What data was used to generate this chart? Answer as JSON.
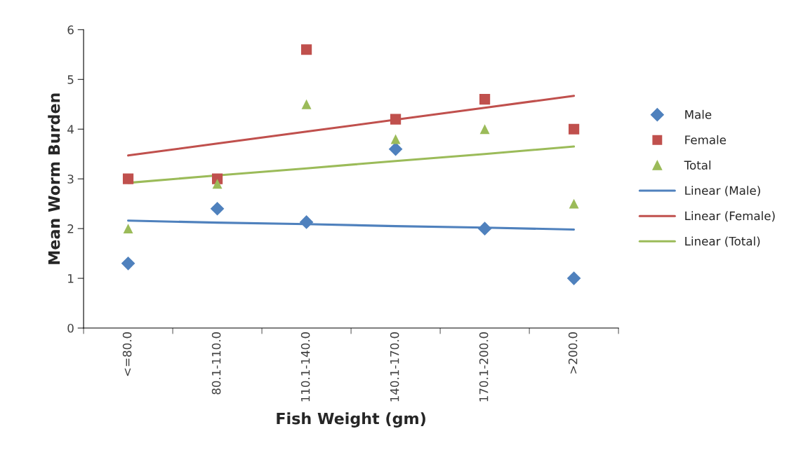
{
  "chart_data": {
    "type": "scatter",
    "xlabel": "Fish Weight (gm)",
    "ylabel": "Mean Worm Burden",
    "categories": [
      "<=80.0",
      "80.1-110.0",
      "110.1-140.0",
      "140.1-170.0",
      "170.1-200.0",
      ">200.0"
    ],
    "ylim": [
      0,
      6
    ],
    "yticks": [
      0,
      1,
      2,
      3,
      4,
      5,
      6
    ],
    "grid": false,
    "legend": "right",
    "series": [
      {
        "name": "Male",
        "marker": "diamond",
        "color": "#4f81bd",
        "values": [
          1.3,
          2.4,
          2.13,
          3.6,
          2.0,
          1.0
        ]
      },
      {
        "name": "Female",
        "marker": "square",
        "color": "#c0504d",
        "values": [
          3.0,
          3.0,
          5.6,
          4.2,
          4.6,
          4.0
        ]
      },
      {
        "name": "Total",
        "marker": "triangle",
        "color": "#9bbb59",
        "values": [
          2.0,
          2.9,
          4.5,
          3.8,
          4.0,
          2.5
        ]
      },
      {
        "name": "Linear (Male)",
        "type": "line",
        "marker": "none",
        "color": "#4f81bd",
        "values": [
          2.16,
          2.12,
          2.09,
          2.05,
          2.02,
          1.98
        ]
      },
      {
        "name": "Linear (Female)",
        "type": "line",
        "marker": "none",
        "color": "#c0504d",
        "values": [
          3.47,
          3.71,
          3.95,
          4.19,
          4.43,
          4.67
        ]
      },
      {
        "name": "Linear (Total)",
        "type": "line",
        "marker": "none",
        "color": "#9bbb59",
        "values": [
          2.92,
          3.07,
          3.21,
          3.36,
          3.5,
          3.65
        ]
      }
    ]
  }
}
